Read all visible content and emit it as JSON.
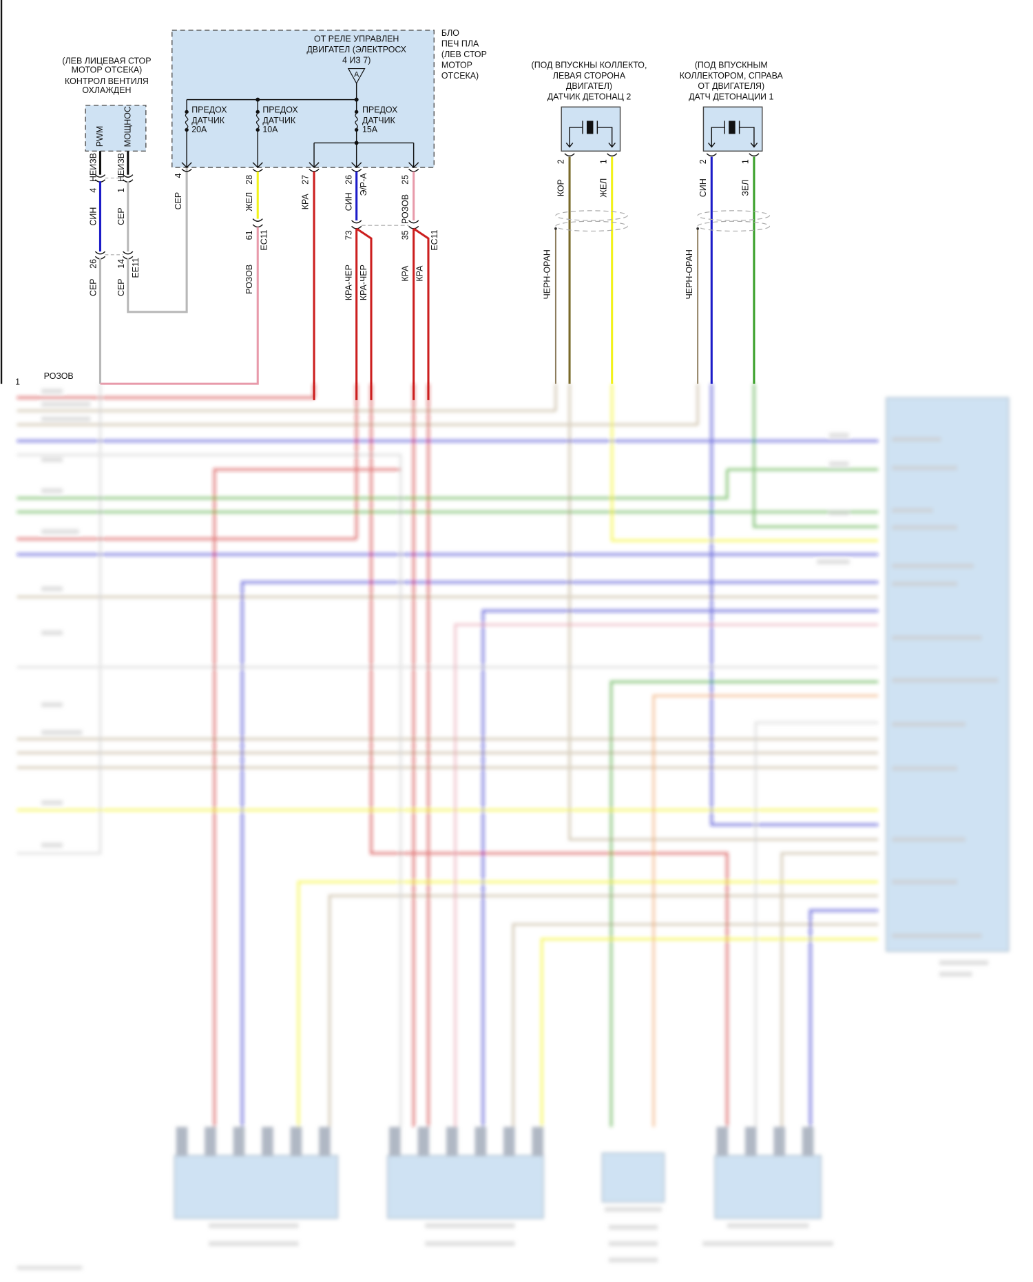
{
  "colors": {
    "blue": "#1c1cc8",
    "gray": "#b8b8b8",
    "yellow": "#f2f21a",
    "red": "#cc1f1f",
    "pink": "#e89aaa",
    "brown": "#7a6a2a",
    "green": "#3aa02a",
    "tan": "#b9a98a",
    "orange": "#f0a060",
    "black": "#111111",
    "box_fill": "#cfe2f3"
  },
  "fan_control": {
    "location_1": "(ЛЕВ ЛИЦЕВАЯ СТОР",
    "location_2": "МОТОР ОТСЕКА)",
    "name_1": "КОНТРОЛ ВЕНТИЛЯ",
    "name_2": "ОХЛАЖДЕН",
    "pin_pwm": "PWM",
    "pin_power": "МОЩНОС",
    "wire_a": {
      "pin": "4",
      "color_top": "НЕИЗВ",
      "color": "СИН",
      "pin2": "26",
      "color2": "СЕР"
    },
    "wire_b": {
      "pin": "1",
      "color_top": "НЕИЗВ",
      "color": "СЕР",
      "pin2": "14",
      "color2": "СЕР",
      "connector": "EE11"
    }
  },
  "fuse_box": {
    "relay_1": "ОТ РЕЛЕ УПРАВЛЕН",
    "relay_2": "ДВИГАТЕЛ (ЭЛЕКТРОСХ",
    "relay_3": "4 ИЗ 7)",
    "ref": "A",
    "side_1": "БЛО",
    "side_2": "ПЕЧ ПЛА",
    "side_3": "(ЛЕВ СТОР",
    "side_4": "МОТОР",
    "side_5": "ОТСЕКА)",
    "fuses": [
      {
        "l1": "ПРЕДОХ",
        "l2": "ДАТЧИК",
        "l3": "20A"
      },
      {
        "l1": "ПРЕДОХ",
        "l2": "ДАТЧИК",
        "l3": "10A"
      },
      {
        "l1": "ПРЕДОХ",
        "l2": "ДАТЧИК",
        "l3": "15A"
      }
    ],
    "outputs": [
      {
        "pin": "4",
        "color": "СЕР"
      },
      {
        "pin": "28",
        "color": "ЖЕЛ",
        "pin2": "61",
        "connector": "EC11",
        "color2": "РОЗОВ"
      },
      {
        "pin": "27",
        "color": "КРА"
      },
      {
        "pin": "26",
        "color": "СИН",
        "circuit": "Э/Р-А",
        "pin2": "73",
        "color2a": "КРА-ЧЕР",
        "color2b": "КРА-ЧЕР"
      },
      {
        "pin": "25",
        "color": "РОЗОВ",
        "pin2": "35",
        "connector": "EC11",
        "color2a": "КРА",
        "color2b": "КРА"
      }
    ]
  },
  "knock_sensor_2": {
    "l1": "(ПОД ВПУСКНЫ КОЛЛЕКТО,",
    "l2": "ЛЕВАЯ СТОРОНА",
    "l3": "ДВИГАТЕЛ)",
    "l4": "ДАТЧИК ДЕТОНАЦ 2",
    "pin_a": "2",
    "color_a": "КОР",
    "pin_b": "1",
    "color_b": "ЖЕЛ",
    "shield": "ЧЕРН-ОРАН"
  },
  "knock_sensor_1": {
    "l1": "(ПОД ВПУСКНЫМ",
    "l2": "КОЛЛЕКТОРОМ, СПРАВА",
    "l3": "ОТ ДВИГАТЕЛЯ)",
    "l4": "ДАТЧ ДЕТОНАЦИИ 1",
    "pin_a": "2",
    "color_a": "СИН",
    "pin_b": "1",
    "color_b": "ЗЕЛ",
    "shield": "ЧЕРН-ОРАН"
  },
  "harness": {
    "pin": "1",
    "color": "РОЗОВ"
  }
}
